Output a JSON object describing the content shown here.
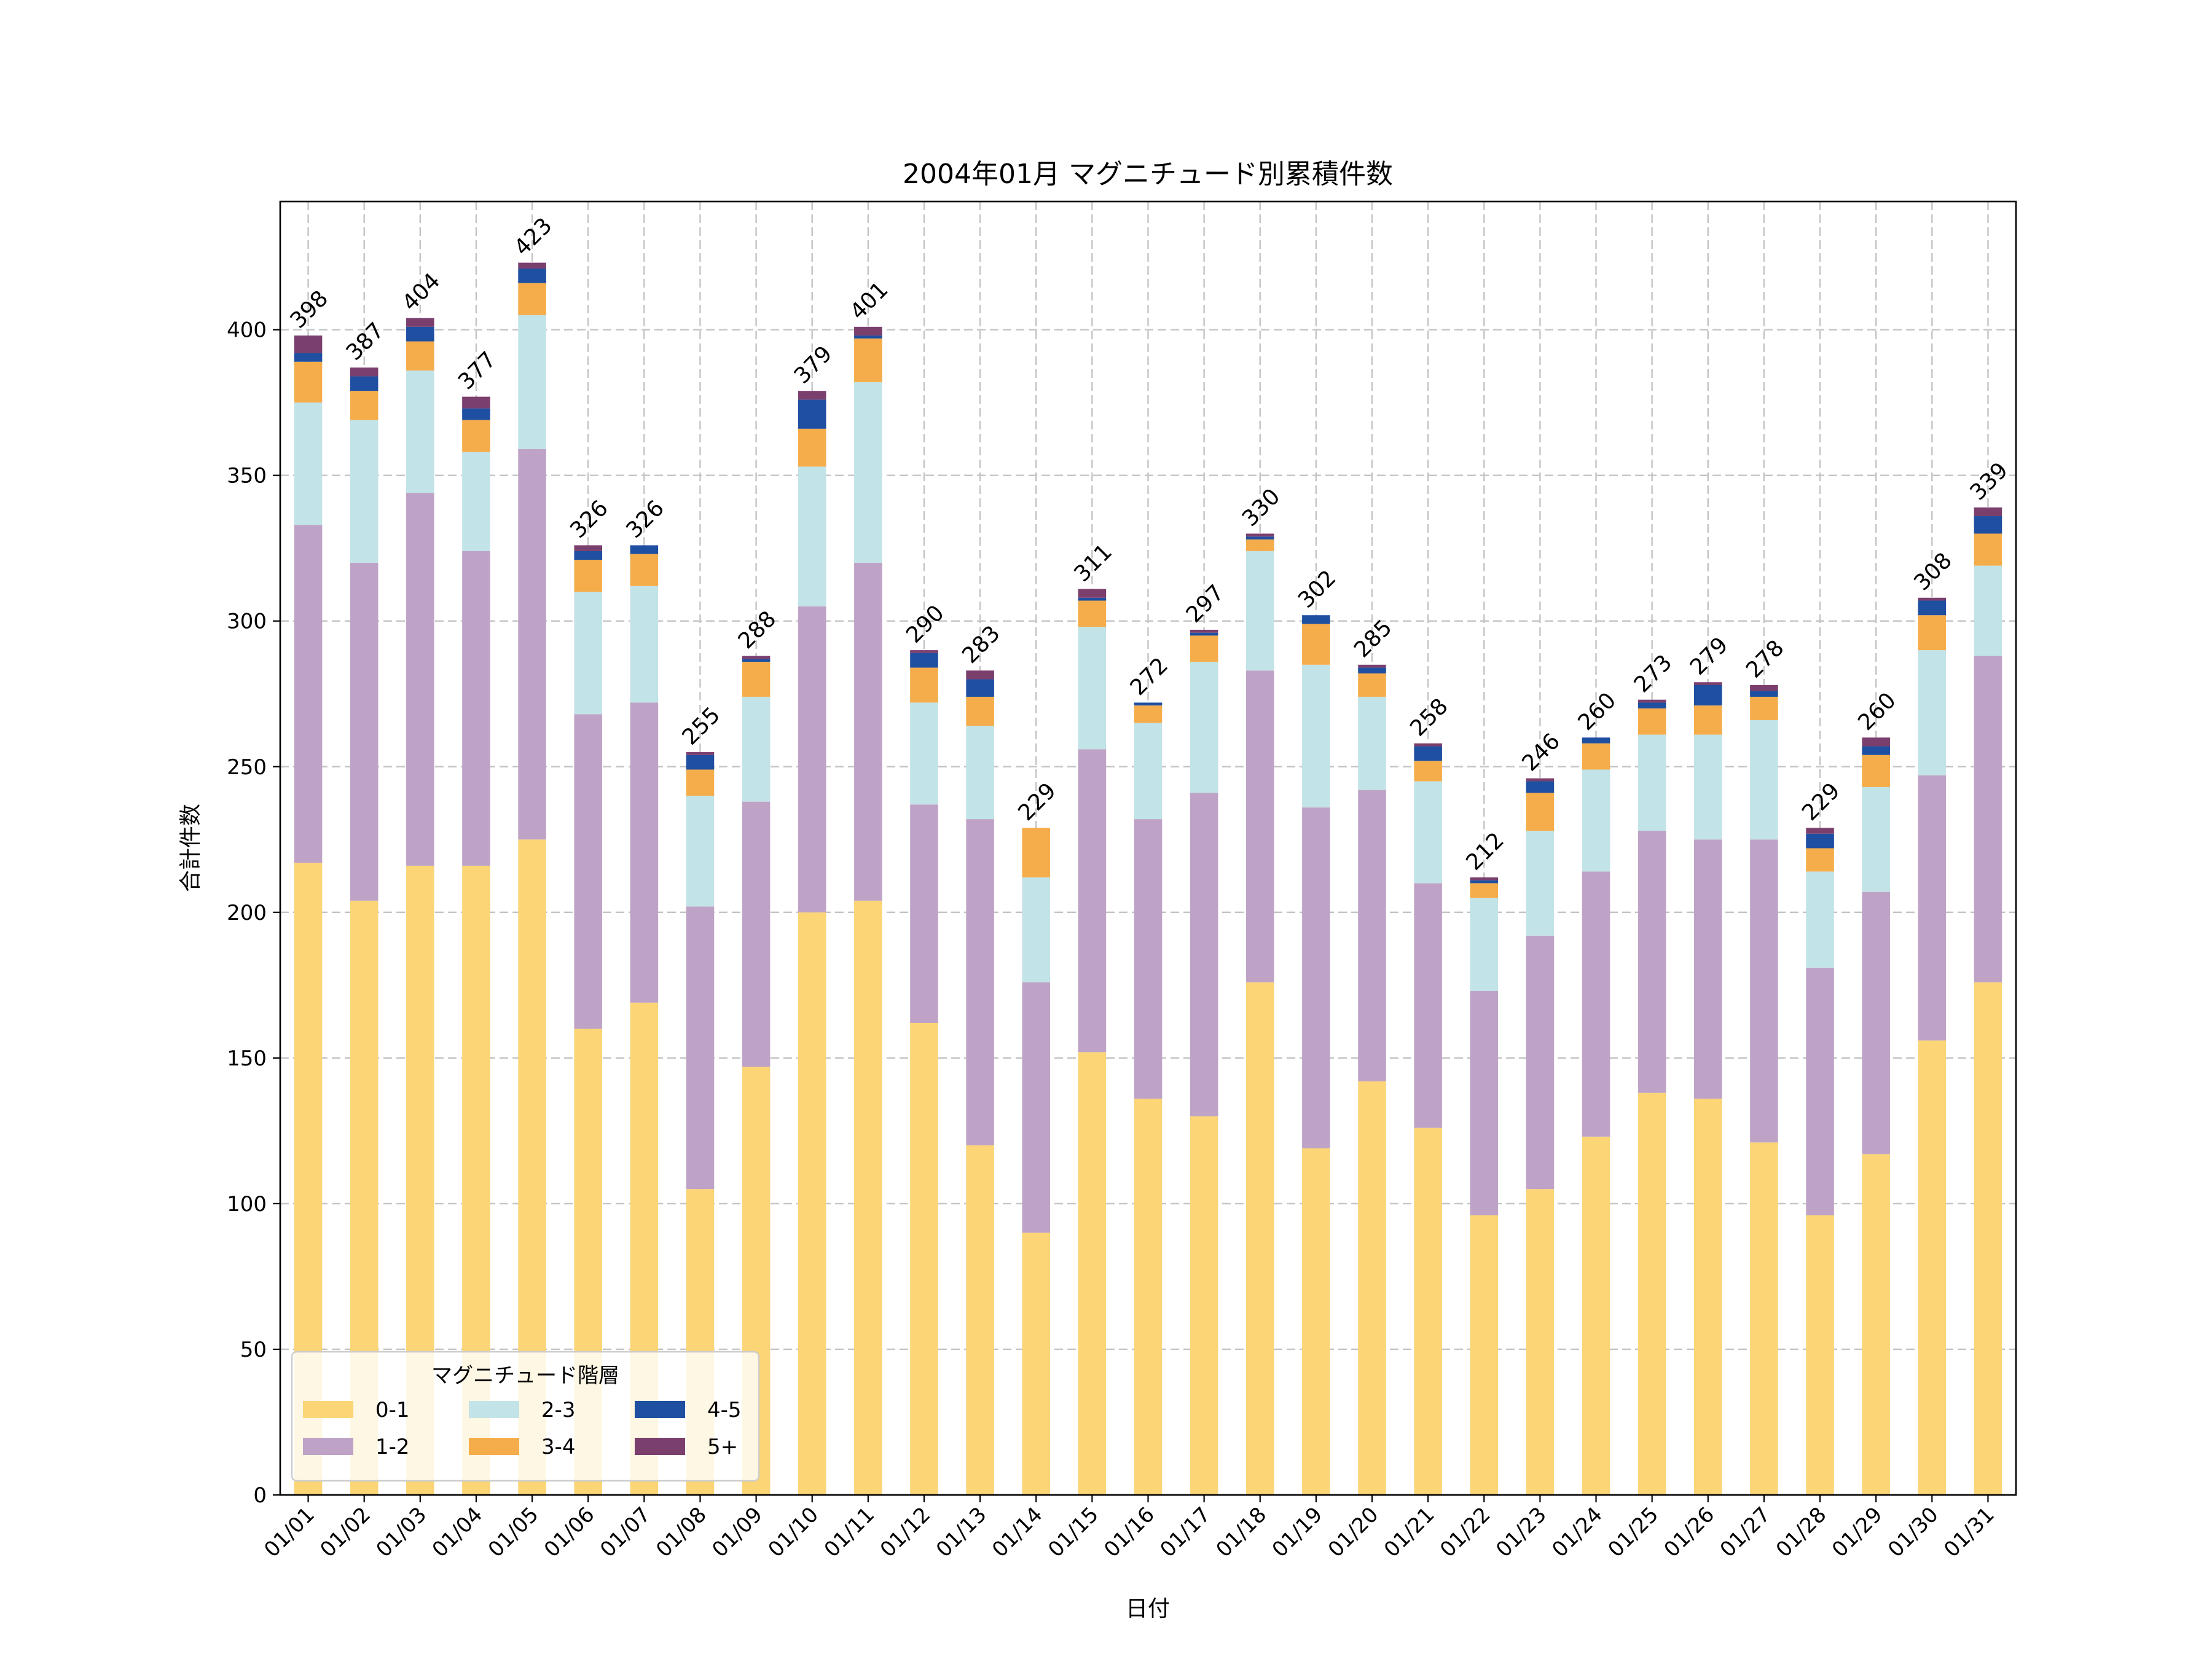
{
  "chart_data": {
    "type": "bar",
    "stacked": true,
    "title": "2004年01月 マグニチュード別累積件数",
    "xlabel": "日付",
    "ylabel": "合計件数",
    "ylim": [
      0,
      444
    ],
    "yticks": [
      0,
      50,
      100,
      150,
      200,
      250,
      300,
      350,
      400
    ],
    "grid": true,
    "legend": {
      "title": "マグニチュード階層",
      "placement": "lower-left",
      "columns": 3
    },
    "categories": [
      "01/01",
      "01/02",
      "01/03",
      "01/04",
      "01/05",
      "01/06",
      "01/07",
      "01/08",
      "01/09",
      "01/10",
      "01/11",
      "01/12",
      "01/13",
      "01/14",
      "01/15",
      "01/16",
      "01/17",
      "01/18",
      "01/19",
      "01/20",
      "01/21",
      "01/22",
      "01/23",
      "01/24",
      "01/25",
      "01/26",
      "01/27",
      "01/28",
      "01/29",
      "01/30",
      "01/31"
    ],
    "series": [
      {
        "name": "0-1",
        "color": "#FBD576",
        "values": [
          217,
          204,
          216,
          216,
          225,
          160,
          169,
          105,
          147,
          200,
          204,
          162,
          120,
          90,
          152,
          136,
          130,
          176,
          119,
          142,
          126,
          96,
          105,
          123,
          138,
          136,
          121,
          96,
          117,
          156,
          176
        ]
      },
      {
        "name": "1-2",
        "color": "#BFA3C6",
        "values": [
          116,
          116,
          128,
          108,
          134,
          108,
          103,
          97,
          91,
          105,
          116,
          75,
          112,
          86,
          104,
          96,
          111,
          107,
          117,
          100,
          84,
          77,
          87,
          91,
          90,
          89,
          104,
          85,
          90,
          91,
          112
        ]
      },
      {
        "name": "2-3",
        "color": "#C2E3E7",
        "values": [
          42,
          49,
          42,
          34,
          46,
          42,
          40,
          38,
          36,
          48,
          62,
          35,
          32,
          36,
          42,
          33,
          45,
          41,
          49,
          32,
          35,
          32,
          36,
          35,
          33,
          36,
          41,
          33,
          36,
          43,
          31
        ]
      },
      {
        "name": "3-4",
        "color": "#F5AD4B",
        "values": [
          14,
          10,
          10,
          11,
          11,
          11,
          11,
          9,
          12,
          13,
          15,
          12,
          10,
          17,
          9,
          6,
          9,
          4,
          14,
          8,
          7,
          5,
          13,
          9,
          9,
          10,
          8,
          8,
          11,
          12,
          11
        ]
      },
      {
        "name": "4-5",
        "color": "#1F4FA0",
        "values": [
          3,
          5,
          5,
          4,
          5,
          3,
          3,
          5,
          1,
          10,
          1,
          5,
          6,
          0,
          1,
          1,
          1,
          1,
          3,
          2,
          5,
          1,
          4,
          2,
          2,
          7,
          2,
          5,
          3,
          5,
          6
        ]
      },
      {
        "name": "5+",
        "color": "#7B3F6E",
        "values": [
          6,
          3,
          3,
          4,
          2,
          2,
          0,
          1,
          1,
          3,
          3,
          1,
          3,
          0,
          3,
          0,
          1,
          1,
          0,
          1,
          1,
          1,
          1,
          0,
          1,
          1,
          2,
          2,
          3,
          1,
          3
        ]
      }
    ],
    "totals": [
      398,
      387,
      404,
      377,
      423,
      326,
      326,
      255,
      288,
      379,
      401,
      290,
      283,
      229,
      311,
      272,
      297,
      330,
      302,
      285,
      258,
      212,
      246,
      260,
      273,
      279,
      278,
      229,
      260,
      308,
      339
    ]
  }
}
